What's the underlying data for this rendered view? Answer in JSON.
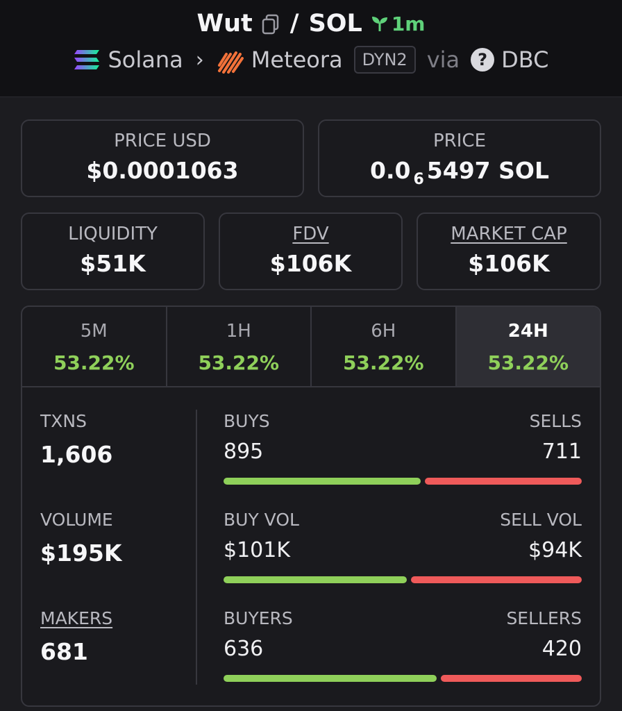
{
  "header": {
    "token": "Wut",
    "slash": "/",
    "quote": "SOL",
    "age": "1m",
    "chain": "Solana",
    "dex": "Meteora",
    "dex_badge": "DYN2",
    "via": "via",
    "via_name": "DBC"
  },
  "cards": {
    "price_usd": {
      "label": "PRICE USD",
      "value": "$0.0001063"
    },
    "price": {
      "label": "PRICE",
      "prefix": "0.0",
      "zeros": "6",
      "digits": "5497 SOL"
    },
    "liquidity": {
      "label": "LIQUIDITY",
      "value": "$51K"
    },
    "fdv": {
      "label": "FDV",
      "value": "$106K"
    },
    "market_cap": {
      "label": "MARKET CAP",
      "value": "$106K"
    }
  },
  "tabs": [
    {
      "label": "5M",
      "value": "53.22%"
    },
    {
      "label": "1H",
      "value": "53.22%"
    },
    {
      "label": "6H",
      "value": "53.22%"
    },
    {
      "label": "24H",
      "value": "53.22%"
    }
  ],
  "stats": {
    "txns": {
      "label": "TXNS",
      "value": "1,606"
    },
    "volume": {
      "label": "VOLUME",
      "value": "$195K"
    },
    "makers": {
      "label": "MAKERS",
      "value": "681"
    },
    "buys": {
      "label": "BUYS",
      "value": "895",
      "other_label": "SELLS",
      "other_value": "711",
      "ratio": 0.557
    },
    "vol": {
      "label": "BUY VOL",
      "value": "$101K",
      "other_label": "SELL VOL",
      "other_value": "$94K",
      "ratio": 0.518
    },
    "buyers": {
      "label": "BUYERS",
      "value": "636",
      "other_label": "SELLERS",
      "other_value": "420",
      "ratio": 0.602
    }
  },
  "colors": {
    "accent_green": "#8fd05a",
    "sell_red": "#ef5a5a",
    "age_green": "#5fd17a"
  }
}
